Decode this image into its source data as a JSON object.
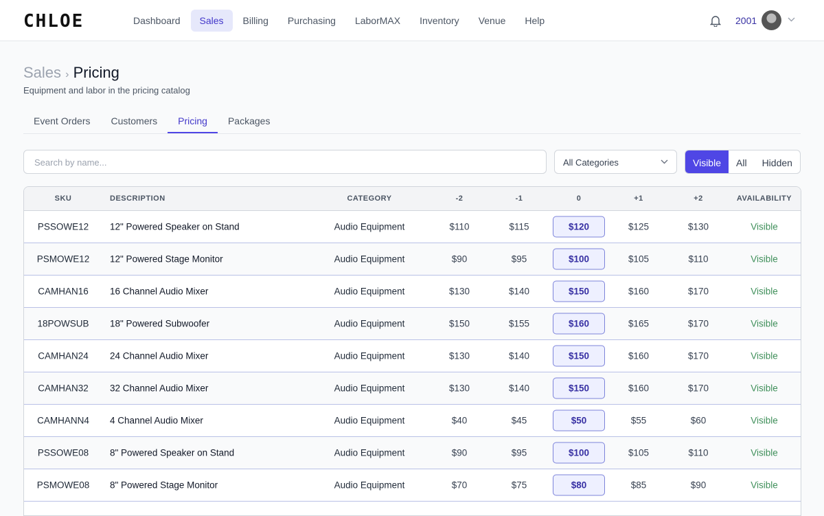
{
  "nav": {
    "logo": "CHLOE",
    "items": [
      "Dashboard",
      "Sales",
      "Billing",
      "Purchasing",
      "LaborMAX",
      "Inventory",
      "Venue",
      "Help"
    ],
    "active": 1,
    "user": "2001"
  },
  "header": {
    "crumb": "Sales",
    "title": "Pricing",
    "subtitle": "Equipment and labor in the pricing catalog"
  },
  "tabs": {
    "items": [
      "Event Orders",
      "Customers",
      "Pricing",
      "Packages"
    ],
    "active": 2
  },
  "filters": {
    "search_placeholder": "Search by name...",
    "category": "All Categories",
    "toggle": [
      "Visible",
      "All",
      "Hidden"
    ],
    "toggle_active": 0
  },
  "table": {
    "columns": [
      "SKU",
      "DESCRIPTION",
      "CATEGORY",
      "-2",
      "-1",
      "0",
      "+1",
      "+2",
      "AVAILABILITY"
    ],
    "rows": [
      [
        "PSSOWE12",
        "12\" Powered Speaker on Stand",
        "Audio Equipment",
        "$110",
        "$115",
        "$120",
        "$125",
        "$130",
        "Visible"
      ],
      [
        "PSMOWE12",
        "12\" Powered Stage Monitor",
        "Audio Equipment",
        "$90",
        "$95",
        "$100",
        "$105",
        "$110",
        "Visible"
      ],
      [
        "CAMHAN16",
        "16 Channel Audio Mixer",
        "Audio Equipment",
        "$130",
        "$140",
        "$150",
        "$160",
        "$170",
        "Visible"
      ],
      [
        "18POWSUB",
        "18\" Powered Subwoofer",
        "Audio Equipment",
        "$150",
        "$155",
        "$160",
        "$165",
        "$170",
        "Visible"
      ],
      [
        "CAMHAN24",
        "24 Channel Audio Mixer",
        "Audio Equipment",
        "$130",
        "$140",
        "$150",
        "$160",
        "$170",
        "Visible"
      ],
      [
        "CAMHAN32",
        "32 Channel Audio Mixer",
        "Audio Equipment",
        "$130",
        "$140",
        "$150",
        "$160",
        "$170",
        "Visible"
      ],
      [
        "CAMHANN4",
        "4 Channel Audio Mixer",
        "Audio Equipment",
        "$40",
        "$45",
        "$50",
        "$55",
        "$60",
        "Visible"
      ],
      [
        "PSSOWE08",
        "8\" Powered Speaker on Stand",
        "Audio Equipment",
        "$90",
        "$95",
        "$100",
        "$105",
        "$110",
        "Visible"
      ],
      [
        "PSMOWE08",
        "8\" Powered Stage Monitor",
        "Audio Equipment",
        "$70",
        "$75",
        "$80",
        "$85",
        "$90",
        "Visible"
      ]
    ]
  }
}
